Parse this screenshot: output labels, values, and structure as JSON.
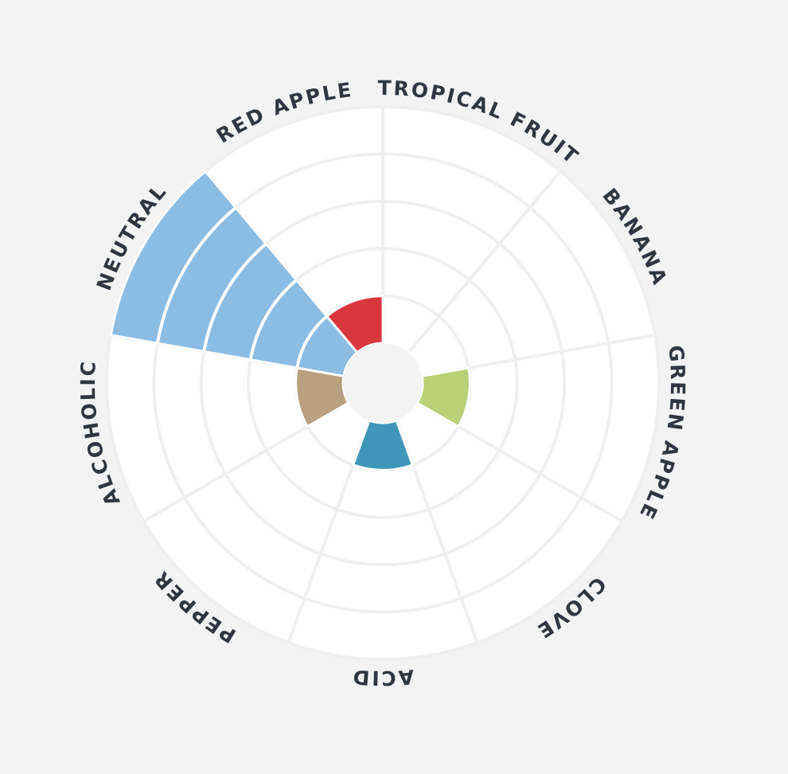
{
  "chart_data": {
    "type": "polar-area",
    "categories": [
      "TROPICAL FRUIT",
      "BANANA",
      "GREEN APPLE",
      "CLOVE",
      "ACID",
      "PEPPER",
      "ALCOHOLIC",
      "NEUTRAL",
      "RED APPLE"
    ],
    "values": [
      0,
      0,
      1,
      0,
      1,
      0,
      1,
      5,
      1
    ],
    "colors": [
      "#f0a030",
      "#f3d44c",
      "#b9cf78",
      "#8e6fb0",
      "#3f96b8",
      "#7a7a7a",
      "#b9a07e",
      "#8bbce4",
      "#d9373c"
    ],
    "rlim": [
      0,
      5
    ],
    "rticks": [
      1,
      2,
      3,
      4,
      5
    ],
    "grid": true
  }
}
